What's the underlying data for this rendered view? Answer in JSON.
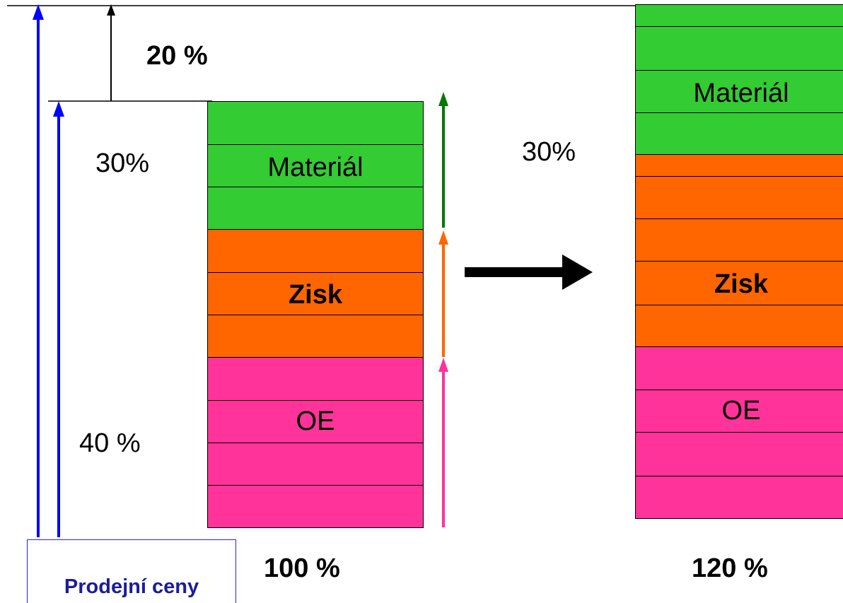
{
  "increase_label": "20 %",
  "left_material_label": "30%",
  "left_oe_label": "40 %",
  "right_material_label": "30%",
  "left_total_label": "100 %",
  "right_total_label": "120 %",
  "legend_label": "Prodejní ceny",
  "bars": {
    "left": {
      "segments": [
        {
          "name": "Materiál",
          "bold": false,
          "color": "#33cc33"
        },
        {
          "name": "Zisk",
          "bold": true,
          "color": "#ff6600"
        },
        {
          "name": "OE",
          "bold": false,
          "color": "#ff3399"
        }
      ]
    },
    "right": {
      "segments": [
        {
          "name": "Materiál",
          "bold": false,
          "color": "#33cc33"
        },
        {
          "name": "Zisk",
          "bold": true,
          "color": "#ff6600"
        },
        {
          "name": "OE",
          "bold": false,
          "color": "#ff3399"
        }
      ]
    }
  },
  "colors": {
    "arrow_blue": "#0000ff",
    "arrow_green": "#007a00",
    "arrow_orange": "#ff6600",
    "arrow_pink": "#ff3399",
    "transition_arrow": "#000000"
  }
}
